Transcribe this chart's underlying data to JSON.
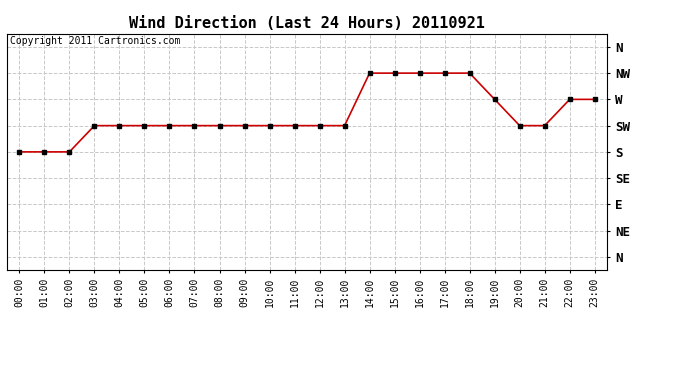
{
  "title": "Wind Direction (Last 24 Hours) 20110921",
  "copyright_text": "Copyright 2011 Cartronics.com",
  "background_color": "#ffffff",
  "plot_bg_color": "#ffffff",
  "grid_color": "#c8c8c8",
  "line_color": "#cc0000",
  "marker_color": "#000000",
  "hours": [
    0,
    1,
    2,
    3,
    4,
    5,
    6,
    7,
    8,
    9,
    10,
    11,
    12,
    13,
    14,
    15,
    16,
    17,
    18,
    19,
    20,
    21,
    22,
    23
  ],
  "wind_values": [
    5,
    5,
    5,
    6,
    6,
    6,
    6,
    6,
    6,
    6,
    6,
    6,
    6,
    6,
    8,
    8,
    8,
    8,
    8,
    7,
    6,
    6,
    7,
    7
  ],
  "ytick_labels": [
    "N",
    "NW",
    "W",
    "SW",
    "S",
    "SE",
    "E",
    "NE",
    "N"
  ],
  "ytick_values": [
    9,
    8,
    7,
    6,
    5,
    4,
    3,
    2,
    1
  ],
  "ylim": [
    0.5,
    9.5
  ],
  "xlim": [
    -0.5,
    23.5
  ],
  "title_fontsize": 11,
  "axis_fontsize": 7,
  "copyright_fontsize": 7
}
